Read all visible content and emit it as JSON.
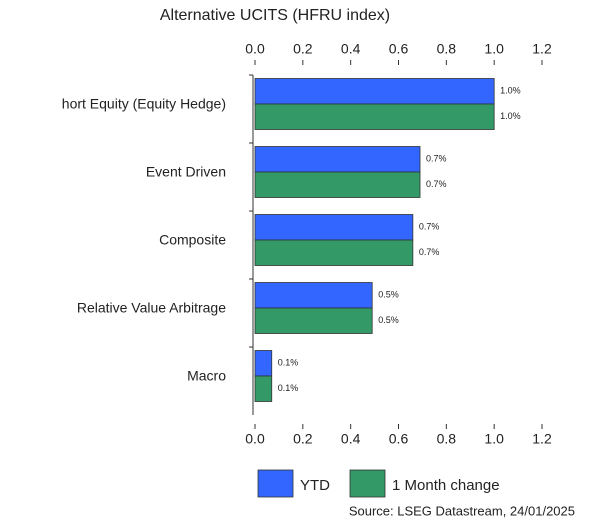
{
  "chart_data": {
    "type": "hbar",
    "title": "Alternative UCITS (HFRU index)",
    "source": "Source: LSEG Datastream, 24/01/2025",
    "categories": [
      "hort Equity (Equity Hedge)",
      "Event Driven",
      "Composite",
      "Relative Value Arbitrage",
      "Macro"
    ],
    "series": [
      {
        "name": "YTD",
        "color": "#3366ff",
        "values": [
          1.0,
          0.69,
          0.66,
          0.49,
          0.07
        ],
        "value_labels": [
          "1.0%",
          "0.7%",
          "0.7%",
          "0.5%",
          "0.1%"
        ]
      },
      {
        "name": "1 Month change",
        "color": "#339966",
        "values": [
          1.0,
          0.69,
          0.66,
          0.49,
          0.07
        ],
        "value_labels": [
          "1.0%",
          "0.7%",
          "0.7%",
          "0.5%",
          "0.1%"
        ]
      }
    ],
    "xlim": [
      0,
      1.2
    ],
    "xticks": [
      {
        "value": 0,
        "label": "0.0"
      },
      0.2,
      0.4,
      0.6,
      0.8,
      {
        "value": 1,
        "label": "1.0"
      },
      1.2
    ]
  }
}
